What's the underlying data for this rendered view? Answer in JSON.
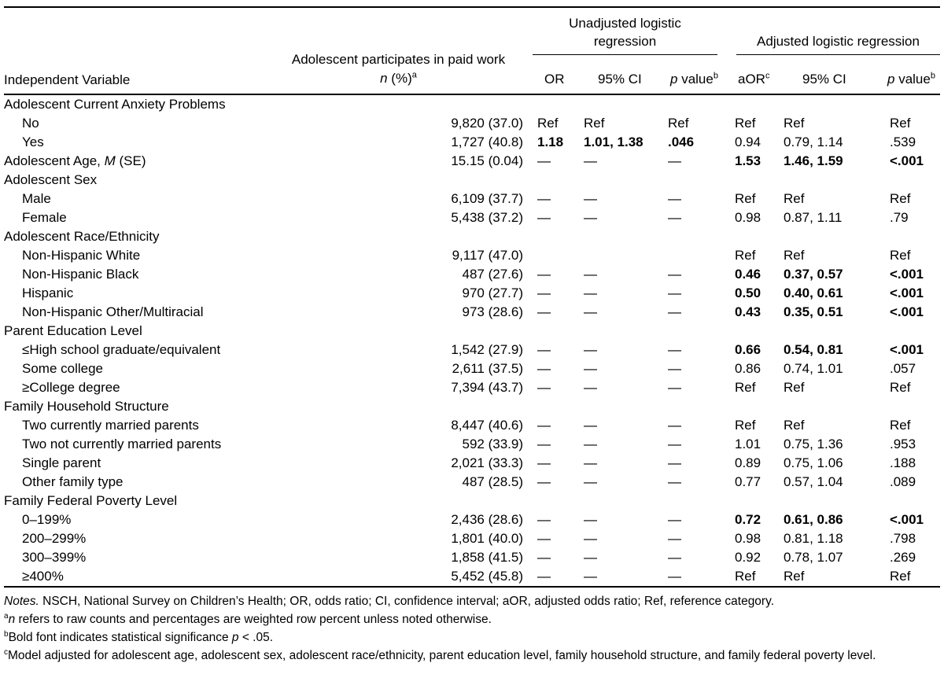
{
  "table": {
    "header": {
      "independent_variable": "Independent Variable",
      "n_col_line1": "Adolescent participates in paid work",
      "n_italic": "n",
      "n_rest": " (%)",
      "n_sup": "a",
      "unadjusted_spanner": "Unadjusted logistic regression",
      "adjusted_spanner": "Adjusted logistic regression",
      "or_label": "OR",
      "ci_label": "95% CI",
      "ci2_label": "95% CI",
      "p_italic": "p",
      "p_rest": " value",
      "p_sup": "b",
      "aor_label": "aOR",
      "aor_sup": "c"
    },
    "rows": [
      {
        "section": true,
        "label": "Adolescent Current Anxiety Problems"
      },
      {
        "label": "No",
        "cells": [
          "9,820 (37.0)",
          "Ref",
          "Ref",
          "Ref",
          "Ref",
          "Ref",
          "Ref"
        ]
      },
      {
        "label": "Yes",
        "cells": [
          "1,727 (40.8)",
          "1.18",
          "1.01, 1.38",
          ".046",
          "0.94",
          "0.79, 1.14",
          ".539"
        ],
        "bold": [
          1,
          2,
          3
        ]
      },
      {
        "label": [
          "Adolescent Age, ",
          {
            "i": "M"
          },
          " (SE)"
        ],
        "indent": false,
        "cells": [
          "15.15 (0.04)",
          "—",
          "—",
          "—",
          "1.53",
          "1.46, 1.59",
          "<.001"
        ],
        "bold": [
          4,
          5,
          6
        ]
      },
      {
        "section": true,
        "label": "Adolescent Sex"
      },
      {
        "label": "Male",
        "cells": [
          "6,109 (37.7)",
          "—",
          "—",
          "—",
          "Ref",
          "Ref",
          "Ref"
        ]
      },
      {
        "label": "Female",
        "cells": [
          "5,438 (37.2)",
          "—",
          "—",
          "—",
          "0.98",
          "0.87, 1.11",
          ".79"
        ]
      },
      {
        "section": true,
        "label": "Adolescent Race/Ethnicity"
      },
      {
        "label": "Non-Hispanic White",
        "cells": [
          "9,117 (47.0)",
          "",
          "",
          "",
          "Ref",
          "Ref",
          "Ref"
        ]
      },
      {
        "label": "Non-Hispanic Black",
        "cells": [
          "487 (27.6)",
          "—",
          "—",
          "—",
          "0.46",
          "0.37, 0.57",
          "<.001"
        ],
        "bold": [
          4,
          5,
          6
        ]
      },
      {
        "label": "Hispanic",
        "cells": [
          "970 (27.7)",
          "—",
          "—",
          "—",
          "0.50",
          "0.40, 0.61",
          "<.001"
        ],
        "bold": [
          4,
          5,
          6
        ]
      },
      {
        "label": "Non-Hispanic Other/Multiracial",
        "cells": [
          "973 (28.6)",
          "—",
          "—",
          "—",
          "0.43",
          "0.35, 0.51",
          "<.001"
        ],
        "bold": [
          4,
          5,
          6
        ]
      },
      {
        "section": true,
        "label": "Parent Education Level"
      },
      {
        "label": "≤High school graduate/equivalent",
        "cells": [
          "1,542 (27.9)",
          "—",
          "—",
          "—",
          "0.66",
          "0.54, 0.81",
          "<.001"
        ],
        "bold": [
          4,
          5,
          6
        ]
      },
      {
        "label": "Some college",
        "cells": [
          "2,611 (37.5)",
          "—",
          "—",
          "—",
          "0.86",
          "0.74, 1.01",
          ".057"
        ]
      },
      {
        "label": "≥College degree",
        "cells": [
          "7,394 (43.7)",
          "—",
          "—",
          "—",
          "Ref",
          "Ref",
          "Ref"
        ]
      },
      {
        "section": true,
        "label": "Family Household Structure"
      },
      {
        "label": "Two currently married parents",
        "cells": [
          "8,447 (40.6)",
          "—",
          "—",
          "—",
          "Ref",
          "Ref",
          "Ref"
        ]
      },
      {
        "label": "Two not currently married parents",
        "cells": [
          "592 (33.9)",
          "—",
          "—",
          "—",
          "1.01",
          "0.75, 1.36",
          ".953"
        ]
      },
      {
        "label": "Single parent",
        "cells": [
          "2,021 (33.3)",
          "—",
          "—",
          "—",
          "0.89",
          "0.75, 1.06",
          ".188"
        ]
      },
      {
        "label": "Other family type",
        "cells": [
          "487 (28.5)",
          "—",
          "—",
          "—",
          "0.77",
          "0.57, 1.04",
          ".089"
        ]
      },
      {
        "section": true,
        "label": "Family Federal Poverty Level"
      },
      {
        "label": "0–199%",
        "cells": [
          "2,436 (28.6)",
          "—",
          "—",
          "—",
          "0.72",
          "0.61, 0.86",
          "<.001"
        ],
        "bold": [
          4,
          5,
          6
        ]
      },
      {
        "label": "200–299%",
        "cells": [
          "1,801 (40.0)",
          "—",
          "—",
          "—",
          "0.98",
          "0.81, 1.18",
          ".798"
        ]
      },
      {
        "label": "300–399%",
        "cells": [
          "1,858 (41.5)",
          "—",
          "—",
          "—",
          "0.92",
          "0.78, 1.07",
          ".269"
        ]
      },
      {
        "label": "≥400%",
        "cells": [
          "5,452 (45.8)",
          "—",
          "—",
          "—",
          "Ref",
          "Ref",
          "Ref"
        ]
      }
    ]
  },
  "notes": {
    "line1_label": "Notes.",
    "line1_text": " NSCH, National Survey on Children’s Health; OR, odds ratio; CI, confidence interval; aOR, adjusted odds ratio; Ref, reference category.",
    "line2_sup": "a",
    "line2_italic": "n",
    "line2_text": " refers to raw counts and percentages are weighted row percent unless noted otherwise.",
    "line3_sup": "b",
    "line3_pre": "Bold font indicates statistical significance ",
    "line3_italic": "p",
    "line3_post": " < .05.",
    "line4_sup": "c",
    "line4_text": "Model adjusted for adolescent age, adolescent sex, adolescent race/ethnicity, parent education level, family household structure, and family federal poverty level."
  }
}
